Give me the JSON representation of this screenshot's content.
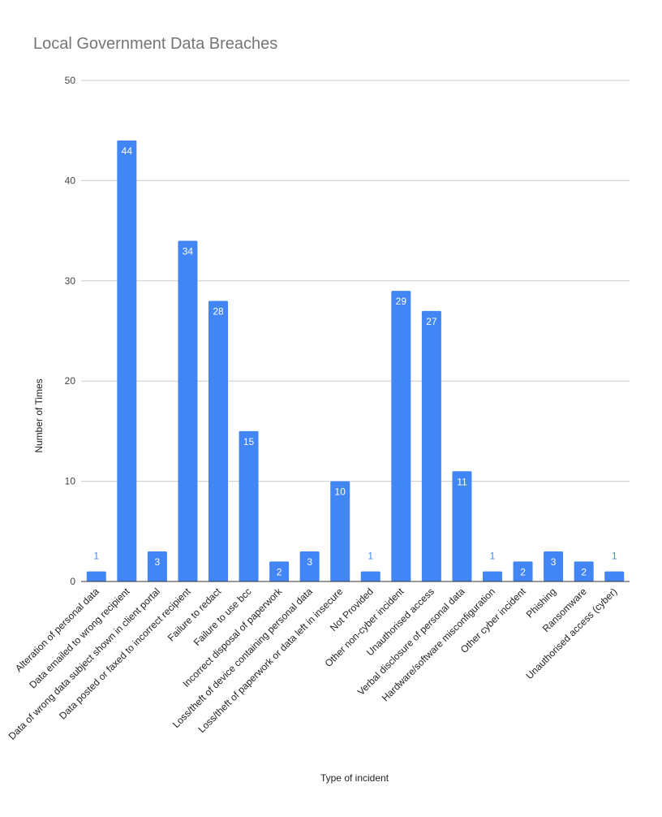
{
  "chart_data": {
    "type": "bar",
    "title": "Local Government Data Breaches",
    "xlabel": "Type of incident",
    "ylabel": "Number of Times",
    "ylim": [
      0,
      50
    ],
    "yticks": [
      0,
      10,
      20,
      30,
      40,
      50
    ],
    "grid": true,
    "legend": "none",
    "bar_color": "#4285f4",
    "categories": [
      "Alteration of personal data",
      "Data emailed to wrong recipient",
      "Data of wrong data subject shown in client portal",
      "Data posted or faxed to incorrect recipient",
      "Failure to redact",
      "Failure to use bcc",
      "Incorrect disposal of paperwork",
      "Loss/theft of device containing personal data",
      "Loss/theft of paperwork or data left in insecure",
      "Not Provided",
      "Other non-cyber incident",
      "Unauthorised access",
      "Verbal disclosure of personal data",
      "Hardware/software misconfiguration",
      "Other cyber incident",
      "Phishing",
      "Ransomware",
      "Unauthorised access (cyber)"
    ],
    "values": [
      1,
      44,
      3,
      34,
      28,
      15,
      2,
      3,
      10,
      1,
      29,
      27,
      11,
      1,
      2,
      3,
      2,
      1
    ]
  }
}
